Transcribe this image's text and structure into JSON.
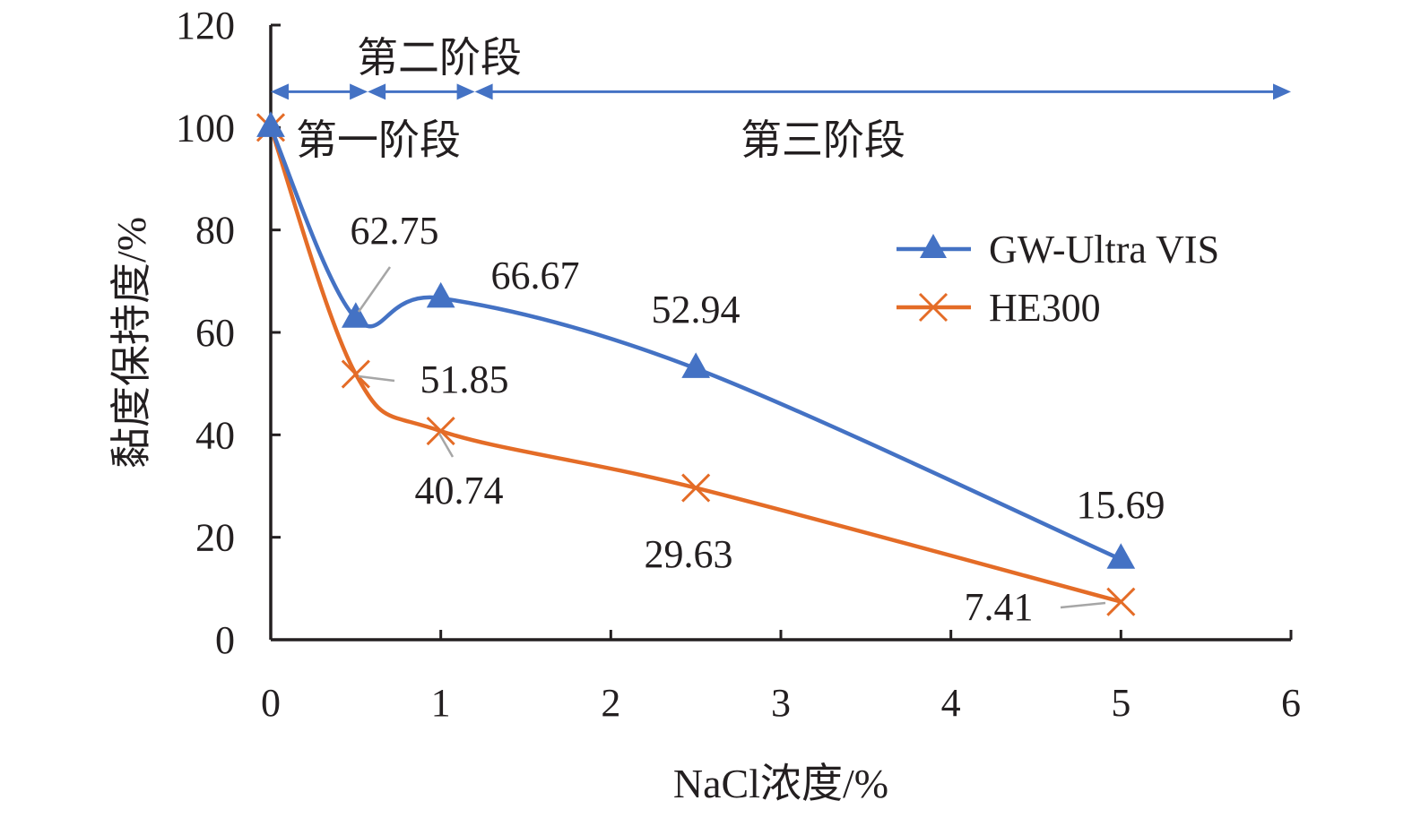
{
  "chart_data": {
    "type": "line",
    "xlabel": "NaCl浓度/%",
    "ylabel": "黏度保持度/%",
    "xlim": [
      0,
      6
    ],
    "ylim": [
      0,
      120
    ],
    "x_ticks": [
      0,
      1,
      2,
      3,
      4,
      5,
      6
    ],
    "y_ticks": [
      0,
      20,
      40,
      60,
      80,
      100,
      120
    ],
    "x_tick_labels": [
      "0",
      "1",
      "2",
      "3",
      "4",
      "5",
      "6"
    ],
    "y_tick_labels": [
      "0",
      "20",
      "40",
      "60",
      "80",
      "100",
      "120"
    ],
    "grid": false,
    "legend_position": "right",
    "series": [
      {
        "name": "GW-Ultra VIS",
        "color": "#4472c4",
        "marker": "triangle",
        "x": [
          0,
          0.5,
          1,
          2.5,
          5
        ],
        "y": [
          100,
          62.75,
          66.67,
          52.94,
          15.69
        ],
        "labels": [
          "",
          "62.75",
          "66.67",
          "52.94",
          "15.69"
        ]
      },
      {
        "name": "HE300",
        "color": "#e46c27",
        "marker": "x",
        "x": [
          0,
          0.5,
          1,
          2.5,
          5
        ],
        "y": [
          100,
          51.85,
          40.74,
          29.63,
          7.41
        ],
        "labels": [
          "",
          "51.85",
          "40.74",
          "29.63",
          "7.41"
        ]
      }
    ],
    "stages": {
      "color": "#4472c4",
      "y": 107,
      "items": [
        {
          "label": "第一阶段",
          "x_start": 0,
          "x_end": 0.57
        },
        {
          "label": "第二阶段",
          "x_start": 0.57,
          "x_end": 1.2
        },
        {
          "label": "第三阶段",
          "x_start": 1.2,
          "x_end": 6
        }
      ]
    }
  }
}
